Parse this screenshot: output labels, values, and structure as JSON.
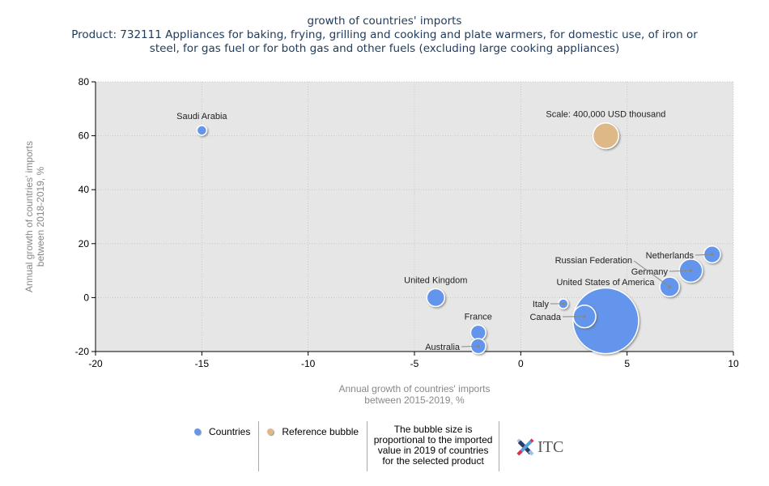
{
  "title": {
    "line1": "growth of countries' imports",
    "line2": "Product: 732111 Appliances for baking, frying, grilling and cooking and plate warmers, for domestic use, of iron or",
    "line3": "steel, for gas fuel or for both gas and other fuels (excluding large cooking appliances)"
  },
  "chart_data": {
    "type": "scatter",
    "subtype": "bubble",
    "title": "growth of countries' imports",
    "xlabel": "Annual growth of countries' imports between 2015-2019, %",
    "xlabel_lines": [
      "Annual growth of countries' imports",
      "between 2015-2019, %"
    ],
    "ylabel": "Annual growth of countries' imports between 2018-2019, %",
    "ylabel_lines": [
      "Annual growth of countries' imports",
      "between 2018-2019, %"
    ],
    "xlim": [
      -20,
      10
    ],
    "ylim": [
      -20,
      80
    ],
    "xticks": [
      -20,
      -15,
      -10,
      -5,
      0,
      5,
      10
    ],
    "yticks": [
      -20,
      0,
      20,
      40,
      60,
      80
    ],
    "grid": true,
    "series": [
      {
        "name": "Countries",
        "color": "#6495ed",
        "points": [
          {
            "label": "Saudi Arabia",
            "x": -15,
            "y": 62,
            "size_rel": 0.07
          },
          {
            "label": "United Kingdom",
            "x": -4,
            "y": 0,
            "size_rel": 0.25
          },
          {
            "label": "France",
            "x": -2,
            "y": -13,
            "size_rel": 0.18
          },
          {
            "label": "Australia",
            "x": -2,
            "y": -18,
            "size_rel": 0.18
          },
          {
            "label": "Italy",
            "x": 2,
            "y": -2.3,
            "size_rel": 0.06
          },
          {
            "label": "Canada",
            "x": 3,
            "y": -7,
            "size_rel": 0.4
          },
          {
            "label": "United States of America",
            "x": 4,
            "y": -8.6,
            "size_rel": 3.4
          },
          {
            "label": "Russian Federation",
            "x": 7,
            "y": 4,
            "size_rel": 0.3
          },
          {
            "label": "Germany",
            "x": 8,
            "y": 10,
            "size_rel": 0.42
          },
          {
            "label": "Netherlands",
            "x": 9,
            "y": 16,
            "size_rel": 0.22
          }
        ]
      },
      {
        "name": "Reference bubble",
        "color": "#deb887",
        "points": [
          {
            "label": "Scale: 400,000 USD thousand",
            "x": 4,
            "y": 60,
            "size_rel": 1.0
          }
        ]
      }
    ],
    "legend": {
      "position": "bottom",
      "items": [
        "Countries",
        "Reference bubble"
      ],
      "note": "The bubble size is proportional to the imported value in 2019 of countries for the selected product"
    }
  },
  "legend": {
    "countries": "Countries",
    "reference": "Reference bubble",
    "note": "The bubble size is proportional to the imported value in 2019 of countries for the selected product",
    "logo": "ITC"
  },
  "colors": {
    "countries": "#6495ed",
    "reference": "#deb887",
    "plot_bg": "#e6e6e6",
    "title": "#1f3a5a",
    "axis_label": "#888888"
  }
}
